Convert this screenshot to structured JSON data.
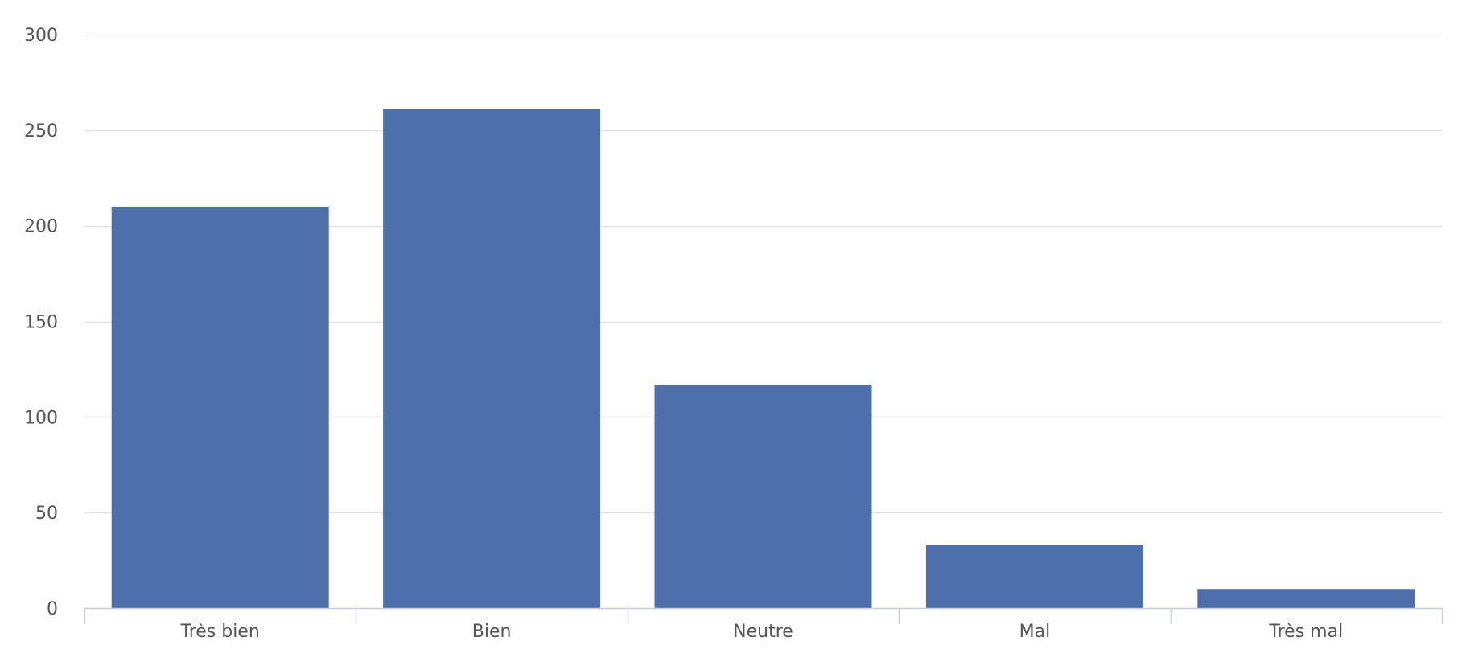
{
  "colors": {
    "bar": "#4D70AC",
    "grid": "#E1E3E8",
    "axis": "#C8CEDF",
    "tick_text": "#555555",
    "background": "#FFFFFF"
  },
  "chart_data": {
    "type": "bar",
    "categories": [
      "Très bien",
      "Bien",
      "Neutre",
      "Mal",
      "Très mal"
    ],
    "values": [
      210,
      261,
      117,
      33,
      10
    ],
    "ylim": [
      0,
      300
    ],
    "yticks": [
      "0",
      "50",
      "100",
      "150",
      "200",
      "250",
      "300"
    ],
    "grid": true,
    "legend": "none"
  }
}
